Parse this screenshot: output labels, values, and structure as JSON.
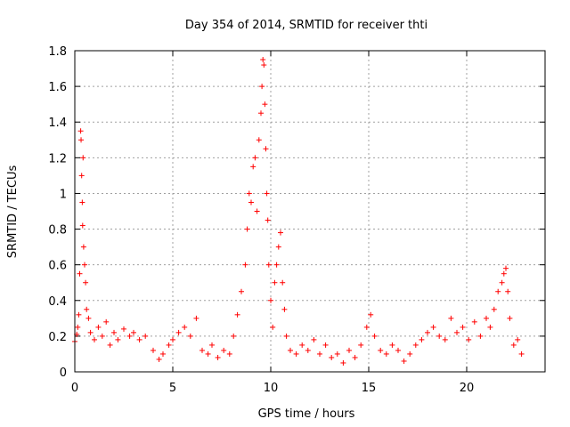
{
  "chart_data": {
    "type": "scatter",
    "title": "Day 354 of 2014, SRMTID for receiver thti",
    "xlabel": "GPS time / hours",
    "ylabel": "SRMTID / TECUs",
    "xlim": [
      0,
      24
    ],
    "ylim": [
      0,
      1.8
    ],
    "x_ticks": [
      0,
      5,
      10,
      15,
      20
    ],
    "x_tick_labels": [
      "0",
      "5",
      "10",
      "15",
      "20"
    ],
    "y_ticks": [
      0,
      0.2,
      0.4,
      0.6,
      0.8,
      1.0,
      1.2,
      1.4,
      1.6,
      1.8
    ],
    "y_tick_labels": [
      "0",
      "0.2",
      "0.4",
      "0.6",
      "0.8",
      "1",
      "1.2",
      "1.4",
      "1.6",
      "1.8"
    ],
    "grid": true,
    "marker": "+",
    "color": "#ff0000",
    "series": [
      {
        "name": "SRMTID",
        "points": [
          [
            0.0,
            0.17
          ],
          [
            0.1,
            0.21
          ],
          [
            0.15,
            0.25
          ],
          [
            0.2,
            0.32
          ],
          [
            0.25,
            0.55
          ],
          [
            0.3,
            1.35
          ],
          [
            0.32,
            1.3
          ],
          [
            0.35,
            1.1
          ],
          [
            0.38,
            0.95
          ],
          [
            0.4,
            0.82
          ],
          [
            0.42,
            1.2
          ],
          [
            0.45,
            0.7
          ],
          [
            0.5,
            0.6
          ],
          [
            0.55,
            0.5
          ],
          [
            0.6,
            0.35
          ],
          [
            0.7,
            0.3
          ],
          [
            0.8,
            0.22
          ],
          [
            1.0,
            0.18
          ],
          [
            1.2,
            0.25
          ],
          [
            1.4,
            0.2
          ],
          [
            1.6,
            0.28
          ],
          [
            1.8,
            0.15
          ],
          [
            2.0,
            0.22
          ],
          [
            2.2,
            0.18
          ],
          [
            2.5,
            0.24
          ],
          [
            2.8,
            0.2
          ],
          [
            3.0,
            0.22
          ],
          [
            3.3,
            0.18
          ],
          [
            3.6,
            0.2
          ],
          [
            4.0,
            0.12
          ],
          [
            4.3,
            0.07
          ],
          [
            4.5,
            0.1
          ],
          [
            4.8,
            0.15
          ],
          [
            5.0,
            0.18
          ],
          [
            5.3,
            0.22
          ],
          [
            5.6,
            0.25
          ],
          [
            5.9,
            0.2
          ],
          [
            6.2,
            0.3
          ],
          [
            6.5,
            0.12
          ],
          [
            6.8,
            0.1
          ],
          [
            7.0,
            0.15
          ],
          [
            7.3,
            0.08
          ],
          [
            7.6,
            0.12
          ],
          [
            7.9,
            0.1
          ],
          [
            8.1,
            0.2
          ],
          [
            8.3,
            0.32
          ],
          [
            8.5,
            0.45
          ],
          [
            8.7,
            0.6
          ],
          [
            8.8,
            0.8
          ],
          [
            8.9,
            1.0
          ],
          [
            9.0,
            0.95
          ],
          [
            9.1,
            1.15
          ],
          [
            9.2,
            1.2
          ],
          [
            9.3,
            0.9
          ],
          [
            9.4,
            1.3
          ],
          [
            9.5,
            1.45
          ],
          [
            9.55,
            1.6
          ],
          [
            9.6,
            1.75
          ],
          [
            9.65,
            1.72
          ],
          [
            9.7,
            1.5
          ],
          [
            9.75,
            1.25
          ],
          [
            9.8,
            1.0
          ],
          [
            9.85,
            0.85
          ],
          [
            9.9,
            0.6
          ],
          [
            10.0,
            0.4
          ],
          [
            10.1,
            0.25
          ],
          [
            10.2,
            0.5
          ],
          [
            10.3,
            0.6
          ],
          [
            10.4,
            0.7
          ],
          [
            10.5,
            0.78
          ],
          [
            10.6,
            0.5
          ],
          [
            10.7,
            0.35
          ],
          [
            10.8,
            0.2
          ],
          [
            11.0,
            0.12
          ],
          [
            11.3,
            0.1
          ],
          [
            11.6,
            0.15
          ],
          [
            11.9,
            0.12
          ],
          [
            12.2,
            0.18
          ],
          [
            12.5,
            0.1
          ],
          [
            12.8,
            0.15
          ],
          [
            13.1,
            0.08
          ],
          [
            13.4,
            0.1
          ],
          [
            13.7,
            0.05
          ],
          [
            14.0,
            0.12
          ],
          [
            14.3,
            0.08
          ],
          [
            14.6,
            0.15
          ],
          [
            14.9,
            0.25
          ],
          [
            15.1,
            0.32
          ],
          [
            15.3,
            0.2
          ],
          [
            15.6,
            0.12
          ],
          [
            15.9,
            0.1
          ],
          [
            16.2,
            0.15
          ],
          [
            16.5,
            0.12
          ],
          [
            16.8,
            0.06
          ],
          [
            17.1,
            0.1
          ],
          [
            17.4,
            0.15
          ],
          [
            17.7,
            0.18
          ],
          [
            18.0,
            0.22
          ],
          [
            18.3,
            0.25
          ],
          [
            18.6,
            0.2
          ],
          [
            18.9,
            0.18
          ],
          [
            19.2,
            0.3
          ],
          [
            19.5,
            0.22
          ],
          [
            19.8,
            0.25
          ],
          [
            20.1,
            0.18
          ],
          [
            20.4,
            0.28
          ],
          [
            20.7,
            0.2
          ],
          [
            21.0,
            0.3
          ],
          [
            21.2,
            0.25
          ],
          [
            21.4,
            0.35
          ],
          [
            21.6,
            0.45
          ],
          [
            21.8,
            0.5
          ],
          [
            21.9,
            0.55
          ],
          [
            22.0,
            0.58
          ],
          [
            22.1,
            0.45
          ],
          [
            22.2,
            0.3
          ],
          [
            22.4,
            0.15
          ],
          [
            22.6,
            0.18
          ],
          [
            22.8,
            0.1
          ]
        ]
      }
    ]
  }
}
